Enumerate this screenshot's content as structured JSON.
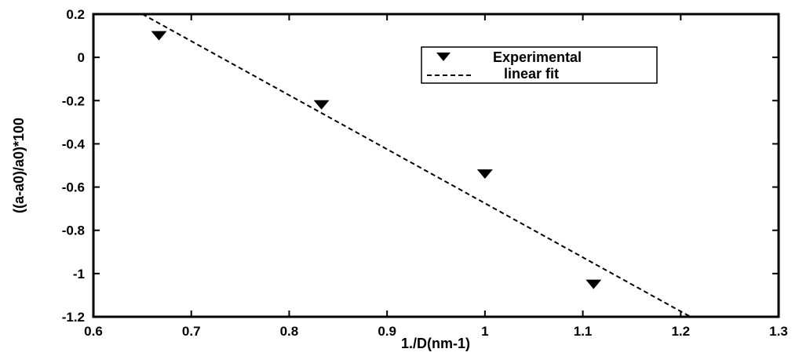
{
  "chart_data": {
    "type": "scatter",
    "xlabel": "1./D(nm-1)",
    "ylabel": "((a-a0)/a0)*100",
    "xlim": [
      0.6,
      1.3
    ],
    "ylim": [
      -1.2,
      0.2
    ],
    "xticks": [
      "0.6",
      "0.7",
      "0.8",
      "0.9",
      "1",
      "1.1",
      "1.2",
      "1.3"
    ],
    "yticks": [
      "0.2",
      "0",
      "-0.2",
      "-0.4",
      "-0.6",
      "-0.8",
      "-1",
      "-1.2"
    ],
    "xtick_values": [
      0.6,
      0.7,
      0.8,
      0.9,
      1.0,
      1.1,
      1.2,
      1.3
    ],
    "ytick_values": [
      0.2,
      0,
      -0.2,
      -0.4,
      -0.6,
      -0.8,
      -1.0,
      -1.2
    ],
    "grid": false,
    "legend_position": "top-right",
    "series": [
      {
        "name": "Experimental",
        "marker": "triangle-down",
        "x": [
          0.667,
          0.833,
          1.0,
          1.111
        ],
        "y": [
          0.1,
          -0.22,
          -0.54,
          -1.05
        ]
      },
      {
        "name": "linear fit",
        "style": "dashed",
        "x": [
          0.65,
          1.21
        ],
        "y": [
          0.2,
          -1.2
        ]
      }
    ],
    "colors": {
      "line": "#000000",
      "marker": "#000000",
      "frame": "#000000"
    }
  }
}
